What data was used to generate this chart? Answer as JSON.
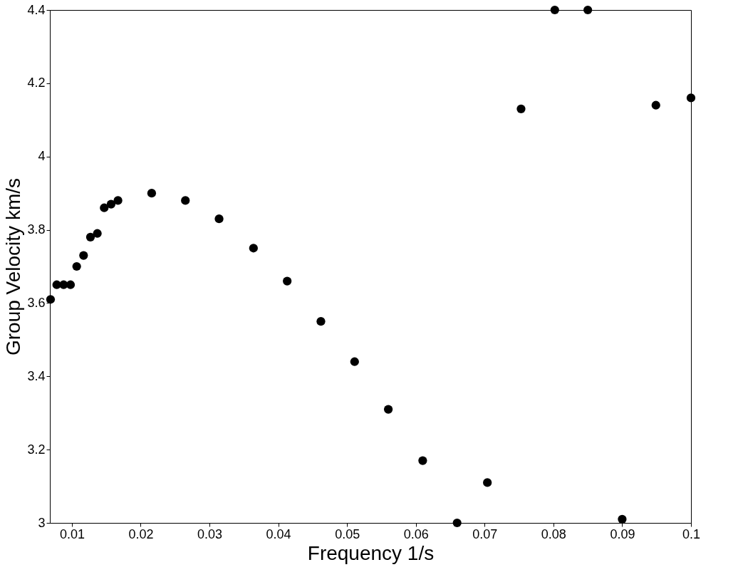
{
  "chart_data": {
    "type": "scatter",
    "xlabel": "Frequency 1/s",
    "ylabel": "Group Velocity km/s",
    "x": [
      0.0069,
      0.0078,
      0.0088,
      0.0098,
      0.0107,
      0.0117,
      0.0127,
      0.0137,
      0.0147,
      0.0157,
      0.0167,
      0.0216,
      0.0265,
      0.0314,
      0.0364,
      0.0413,
      0.0462,
      0.0511,
      0.056,
      0.061,
      0.066,
      0.0704,
      0.0753,
      0.0802,
      0.085,
      0.09,
      0.0949,
      0.1
    ],
    "series": [
      {
        "color": "#000000",
        "values": [
          3.61,
          3.65,
          3.65,
          3.65,
          3.7,
          3.73,
          3.78,
          3.79,
          3.86,
          3.87,
          3.88,
          3.9,
          3.88,
          3.83,
          3.75,
          3.66,
          3.55,
          3.44,
          3.31,
          3.17,
          3.0,
          3.11,
          4.13,
          4.4,
          4.4,
          3.01,
          4.14,
          4.16
        ]
      }
    ],
    "xlim": [
      0.0068,
      0.1
    ],
    "xticks": [
      0.01,
      0.02,
      0.03,
      0.04,
      0.05,
      0.06,
      0.07,
      0.08,
      0.09,
      0.1
    ],
    "ylim": [
      3,
      4.4
    ],
    "yticks": [
      3,
      3.2,
      3.4,
      3.6,
      3.8,
      4,
      4.2,
      4.4
    ],
    "grid": false,
    "legend": false,
    "marker": "circle"
  }
}
